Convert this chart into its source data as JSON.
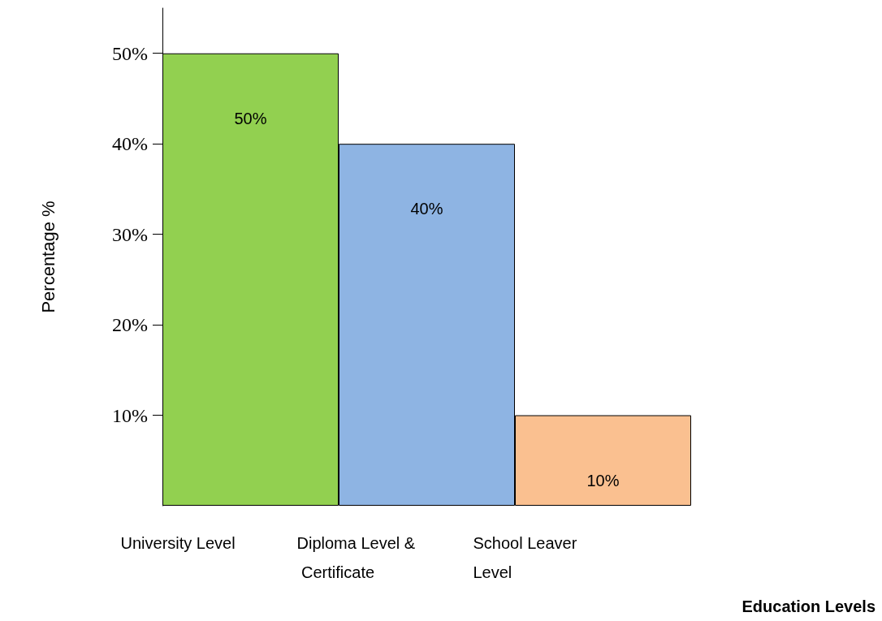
{
  "chart_data": {
    "type": "bar",
    "annotations": [
      "Education Levels"
    ],
    "ylabel": "Percentage %",
    "categories": [
      "University Level",
      "Diploma Level & Certificate",
      "School Leaver Level"
    ],
    "values": [
      50,
      40,
      10
    ],
    "colors": [
      "#92d050",
      "#8eb4e3",
      "#fac090"
    ],
    "value_labels": [
      "50%",
      "40%",
      "10%"
    ],
    "ylim": [
      0,
      55
    ],
    "yticks": [
      {
        "value": 10,
        "label": "10%"
      },
      {
        "value": 20,
        "label": "20%"
      },
      {
        "value": 30,
        "label": "30%"
      },
      {
        "value": 40,
        "label": "40%"
      },
      {
        "value": 50,
        "label": "50%"
      }
    ],
    "grid": false
  }
}
